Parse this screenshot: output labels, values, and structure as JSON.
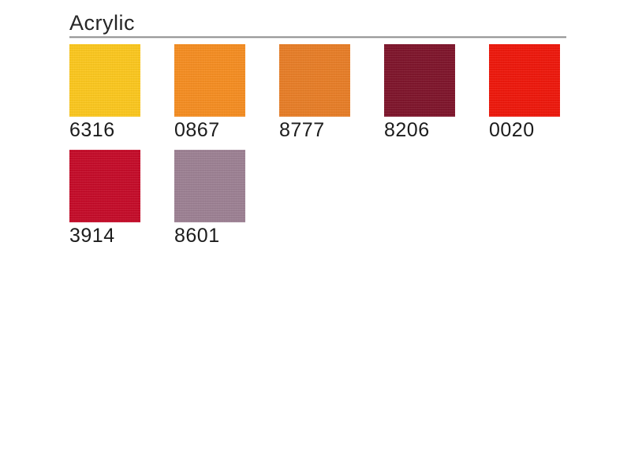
{
  "page": {
    "title": "Acrylic"
  },
  "divider_color": "#9b9b9b",
  "swatches": [
    {
      "code": "6316",
      "color": "#FCC71B"
    },
    {
      "code": "0867",
      "color": "#F68C1E"
    },
    {
      "code": "8777",
      "color": "#E87C24"
    },
    {
      "code": "8206",
      "color": "#7D1128"
    },
    {
      "code": "0020",
      "color": "#EF1408"
    },
    {
      "code": "3914",
      "color": "#C50826"
    },
    {
      "code": "8601",
      "color": "#9C7F92"
    }
  ]
}
